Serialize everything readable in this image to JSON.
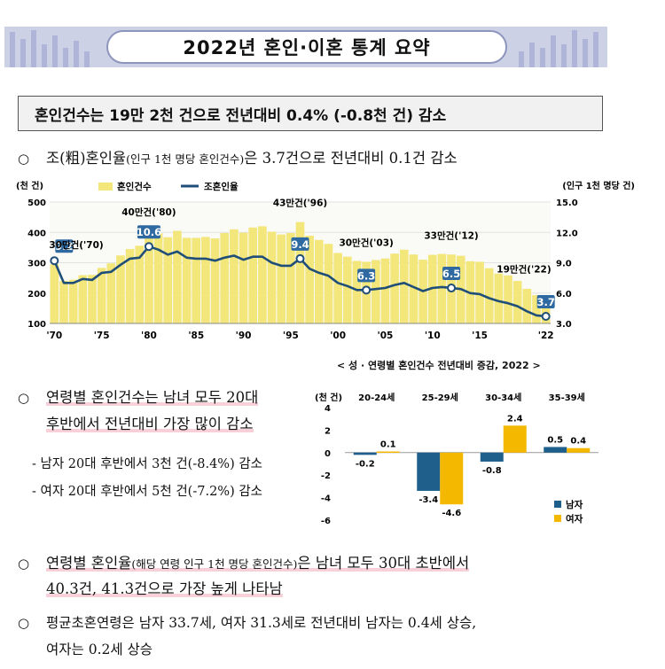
{
  "banner": {
    "title": "2022년 혼인·이혼 통계 요약"
  },
  "headline": "혼인건수는 19만 2천 건으로 전년대비 0.4% (-0.8천 건) 감소",
  "bullets": [
    {
      "mark": "○",
      "pre": "조(粗)혼인율",
      "small": "(인구 1천 명당 혼인건수)",
      "post": "은 3.7건으로 전년대비 0.1건 감소"
    },
    {
      "mark": "○",
      "line1": "연령별 혼인건수는 남녀 모두 20대",
      "line2": "후반에서 전년대비 가장 많이 감소"
    },
    {
      "sub1": "- 남자 20대 후반에서 3천 건(-8.4%) 감소",
      "sub2": "- 여자 20대 후반에서 5천 건(-7.2%) 감소"
    },
    {
      "mark": "○",
      "pre": "연령별 혼인율",
      "small": "(해당 연령 인구 1천 명당 혼인건수)",
      "post": "은 남녀 모두 30대 초반에서",
      "line2": "40.3건, 41.3건으로 가장 높게 나타남"
    },
    {
      "mark": "○",
      "line1": "평균초혼연령은 남자 33.7세, 여자 31.3세로 전년대비 남자는 0.4세 상승,",
      "line2": "여자는 0.2세 상승"
    }
  ],
  "colors": {
    "bar": "#f3e67a",
    "line": "#1f4e79",
    "male": "#1f5f8b",
    "female": "#f5b800",
    "banner": "#ccd1e6"
  },
  "chart_data": [
    {
      "type": "bar+line",
      "left_unit": "(천 건)",
      "right_unit": "(인구 1천 명당 건)",
      "legend": [
        "혼인건수",
        "조혼인율"
      ],
      "ylim_left": [
        100,
        500
      ],
      "yticks_left": [
        100,
        200,
        300,
        400,
        500
      ],
      "ylim_right": [
        3.0,
        15.0
      ],
      "yticks_right": [
        "3.0",
        "6.0",
        "9.0",
        "12.0",
        "15.0"
      ],
      "x_tick_labels": [
        "'70",
        "'75",
        "'80",
        "'85",
        "'90",
        "'95",
        "'00",
        "'05",
        "'10",
        "'15",
        "'22"
      ],
      "x_tick_years": [
        1970,
        1975,
        1980,
        1985,
        1990,
        1995,
        2000,
        2005,
        2010,
        2015,
        2022
      ],
      "years": [
        1970,
        1971,
        1972,
        1973,
        1974,
        1975,
        1976,
        1977,
        1978,
        1979,
        1980,
        1981,
        1982,
        1983,
        1984,
        1985,
        1986,
        1987,
        1988,
        1989,
        1990,
        1991,
        1992,
        1993,
        1994,
        1995,
        1996,
        1997,
        1998,
        1999,
        2000,
        2001,
        2002,
        2003,
        2004,
        2005,
        2006,
        2007,
        2008,
        2009,
        2010,
        2011,
        2012,
        2013,
        2014,
        2015,
        2016,
        2017,
        2018,
        2019,
        2020,
        2021,
        2022
      ],
      "marriages": [
        295,
        240,
        244,
        259,
        260,
        283,
        298,
        324,
        345,
        356,
        403,
        397,
        384,
        405,
        382,
        382,
        385,
        380,
        398,
        410,
        399,
        416,
        420,
        402,
        393,
        398,
        434,
        389,
        375,
        362,
        332,
        320,
        306,
        303,
        309,
        314,
        330,
        343,
        327,
        310,
        326,
        329,
        327,
        323,
        305,
        303,
        282,
        264,
        258,
        240,
        214,
        193,
        192
      ],
      "crude_rate": [
        9.2,
        7.0,
        7.0,
        7.4,
        7.3,
        8.0,
        8.1,
        8.8,
        9.4,
        9.5,
        10.6,
        10.3,
        9.8,
        10.1,
        9.5,
        9.4,
        9.4,
        9.2,
        9.5,
        9.7,
        9.3,
        9.6,
        9.6,
        9.0,
        8.7,
        8.7,
        9.4,
        8.4,
        8.0,
        7.7,
        7.0,
        6.7,
        6.3,
        6.3,
        6.4,
        6.5,
        6.8,
        7.0,
        6.6,
        6.2,
        6.5,
        6.6,
        6.5,
        6.4,
        6.0,
        5.9,
        5.5,
        5.2,
        5.0,
        4.7,
        4.2,
        3.8,
        3.7
      ],
      "annotations": [
        {
          "text": "30만건('70)",
          "year": 1970
        },
        {
          "text": "40만건('80)",
          "year": 1980
        },
        {
          "text": "43만건('96)",
          "year": 1996
        },
        {
          "text": "30만건('03)",
          "year": 2003
        },
        {
          "text": "33만건('12)",
          "year": 2012
        },
        {
          "text": "19만건('22)",
          "year": 2022
        }
      ],
      "highlighted_rates": [
        {
          "year": 1970,
          "value": "9.2"
        },
        {
          "year": 1980,
          "value": "10.6"
        },
        {
          "year": 1996,
          "value": "9.4"
        },
        {
          "year": 2003,
          "value": "6.3"
        },
        {
          "year": 2012,
          "value": "6.5"
        },
        {
          "year": 2022,
          "value": "3.7"
        }
      ]
    },
    {
      "type": "bar",
      "title": "< 성 · 연령별 혼인건수 전년대비 증감, 2022 >",
      "unit": "(천 건)",
      "categories": [
        "20-24세",
        "25-29세",
        "30-34세",
        "35-39세"
      ],
      "series": [
        {
          "name": "남자",
          "values": [
            -0.2,
            -3.4,
            -0.8,
            0.5
          ]
        },
        {
          "name": "여자",
          "values": [
            0.1,
            -4.6,
            2.4,
            0.4
          ]
        }
      ],
      "ylim": [
        -6,
        4
      ],
      "yticks": [
        4,
        2,
        0,
        -2,
        -4,
        -6
      ],
      "value_labels": {
        "남자": [
          "-0.2",
          "-3.4",
          "-0.8",
          "0.5"
        ],
        "여자": [
          "0.1",
          "-4.6",
          "2.4",
          "0.4"
        ]
      }
    }
  ]
}
